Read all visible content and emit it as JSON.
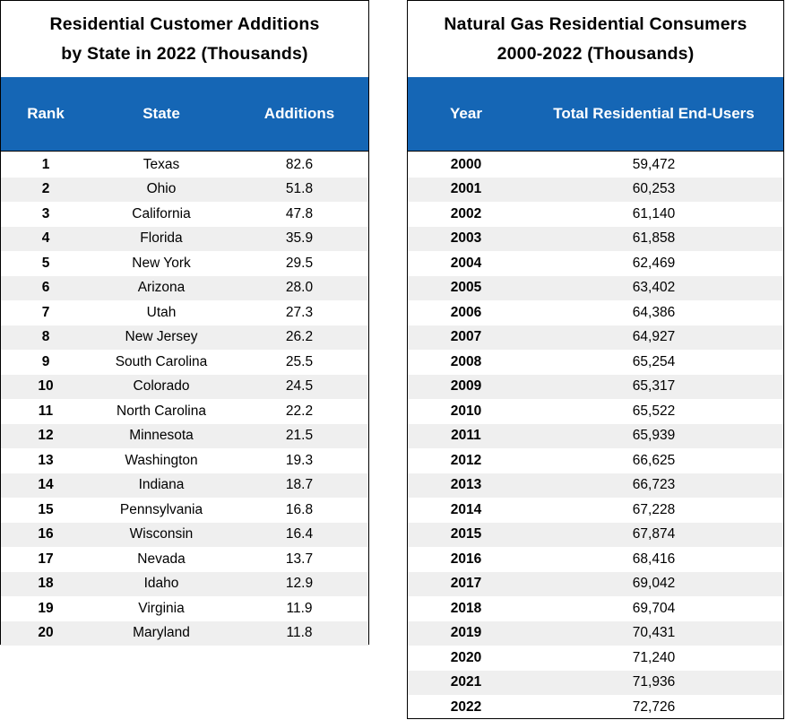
{
  "left_table": {
    "title_line1": "Residential Customer Additions",
    "title_line2": "by State in 2022 (Thousands)",
    "headers": {
      "rank": "Rank",
      "state": "State",
      "additions": "Additions"
    },
    "rows": [
      {
        "rank": "1",
        "state": "Texas",
        "additions": "82.6"
      },
      {
        "rank": "2",
        "state": "Ohio",
        "additions": "51.8"
      },
      {
        "rank": "3",
        "state": "California",
        "additions": "47.8"
      },
      {
        "rank": "4",
        "state": "Florida",
        "additions": "35.9"
      },
      {
        "rank": "5",
        "state": "New York",
        "additions": "29.5"
      },
      {
        "rank": "6",
        "state": "Arizona",
        "additions": "28.0"
      },
      {
        "rank": "7",
        "state": "Utah",
        "additions": "27.3"
      },
      {
        "rank": "8",
        "state": "New Jersey",
        "additions": "26.2"
      },
      {
        "rank": "9",
        "state": "South Carolina",
        "additions": "25.5"
      },
      {
        "rank": "10",
        "state": "Colorado",
        "additions": "24.5"
      },
      {
        "rank": "11",
        "state": "North Carolina",
        "additions": "22.2"
      },
      {
        "rank": "12",
        "state": "Minnesota",
        "additions": "21.5"
      },
      {
        "rank": "13",
        "state": "Washington",
        "additions": "19.3"
      },
      {
        "rank": "14",
        "state": "Indiana",
        "additions": "18.7"
      },
      {
        "rank": "15",
        "state": "Pennsylvania",
        "additions": "16.8"
      },
      {
        "rank": "16",
        "state": "Wisconsin",
        "additions": "16.4"
      },
      {
        "rank": "17",
        "state": "Nevada",
        "additions": "13.7"
      },
      {
        "rank": "18",
        "state": "Idaho",
        "additions": "12.9"
      },
      {
        "rank": "19",
        "state": "Virginia",
        "additions": "11.9"
      },
      {
        "rank": "20",
        "state": "Maryland",
        "additions": "11.8"
      }
    ]
  },
  "right_table": {
    "title_line1": "Natural Gas Residential Consumers",
    "title_line2": "2000-2022 (Thousands)",
    "headers": {
      "year": "Year",
      "total": "Total Residential End-Users"
    },
    "rows": [
      {
        "year": "2000",
        "total": "59,472"
      },
      {
        "year": "2001",
        "total": "60,253"
      },
      {
        "year": "2002",
        "total": "61,140"
      },
      {
        "year": "2003",
        "total": "61,858"
      },
      {
        "year": "2004",
        "total": "62,469"
      },
      {
        "year": "2005",
        "total": "63,402"
      },
      {
        "year": "2006",
        "total": "64,386"
      },
      {
        "year": "2007",
        "total": "64,927"
      },
      {
        "year": "2008",
        "total": "65,254"
      },
      {
        "year": "2009",
        "total": "65,317"
      },
      {
        "year": "2010",
        "total": "65,522"
      },
      {
        "year": "2011",
        "total": "65,939"
      },
      {
        "year": "2012",
        "total": "66,625"
      },
      {
        "year": "2013",
        "total": "66,723"
      },
      {
        "year": "2014",
        "total": "67,228"
      },
      {
        "year": "2015",
        "total": "67,874"
      },
      {
        "year": "2016",
        "total": "68,416"
      },
      {
        "year": "2017",
        "total": "69,042"
      },
      {
        "year": "2018",
        "total": "69,704"
      },
      {
        "year": "2019",
        "total": "70,431"
      },
      {
        "year": "2020",
        "total": "71,240"
      },
      {
        "year": "2021",
        "total": "71,936"
      },
      {
        "year": "2022",
        "total": "72,726"
      }
    ]
  },
  "colors": {
    "header_bg": "#1566b5",
    "stripe": "#efefef"
  }
}
